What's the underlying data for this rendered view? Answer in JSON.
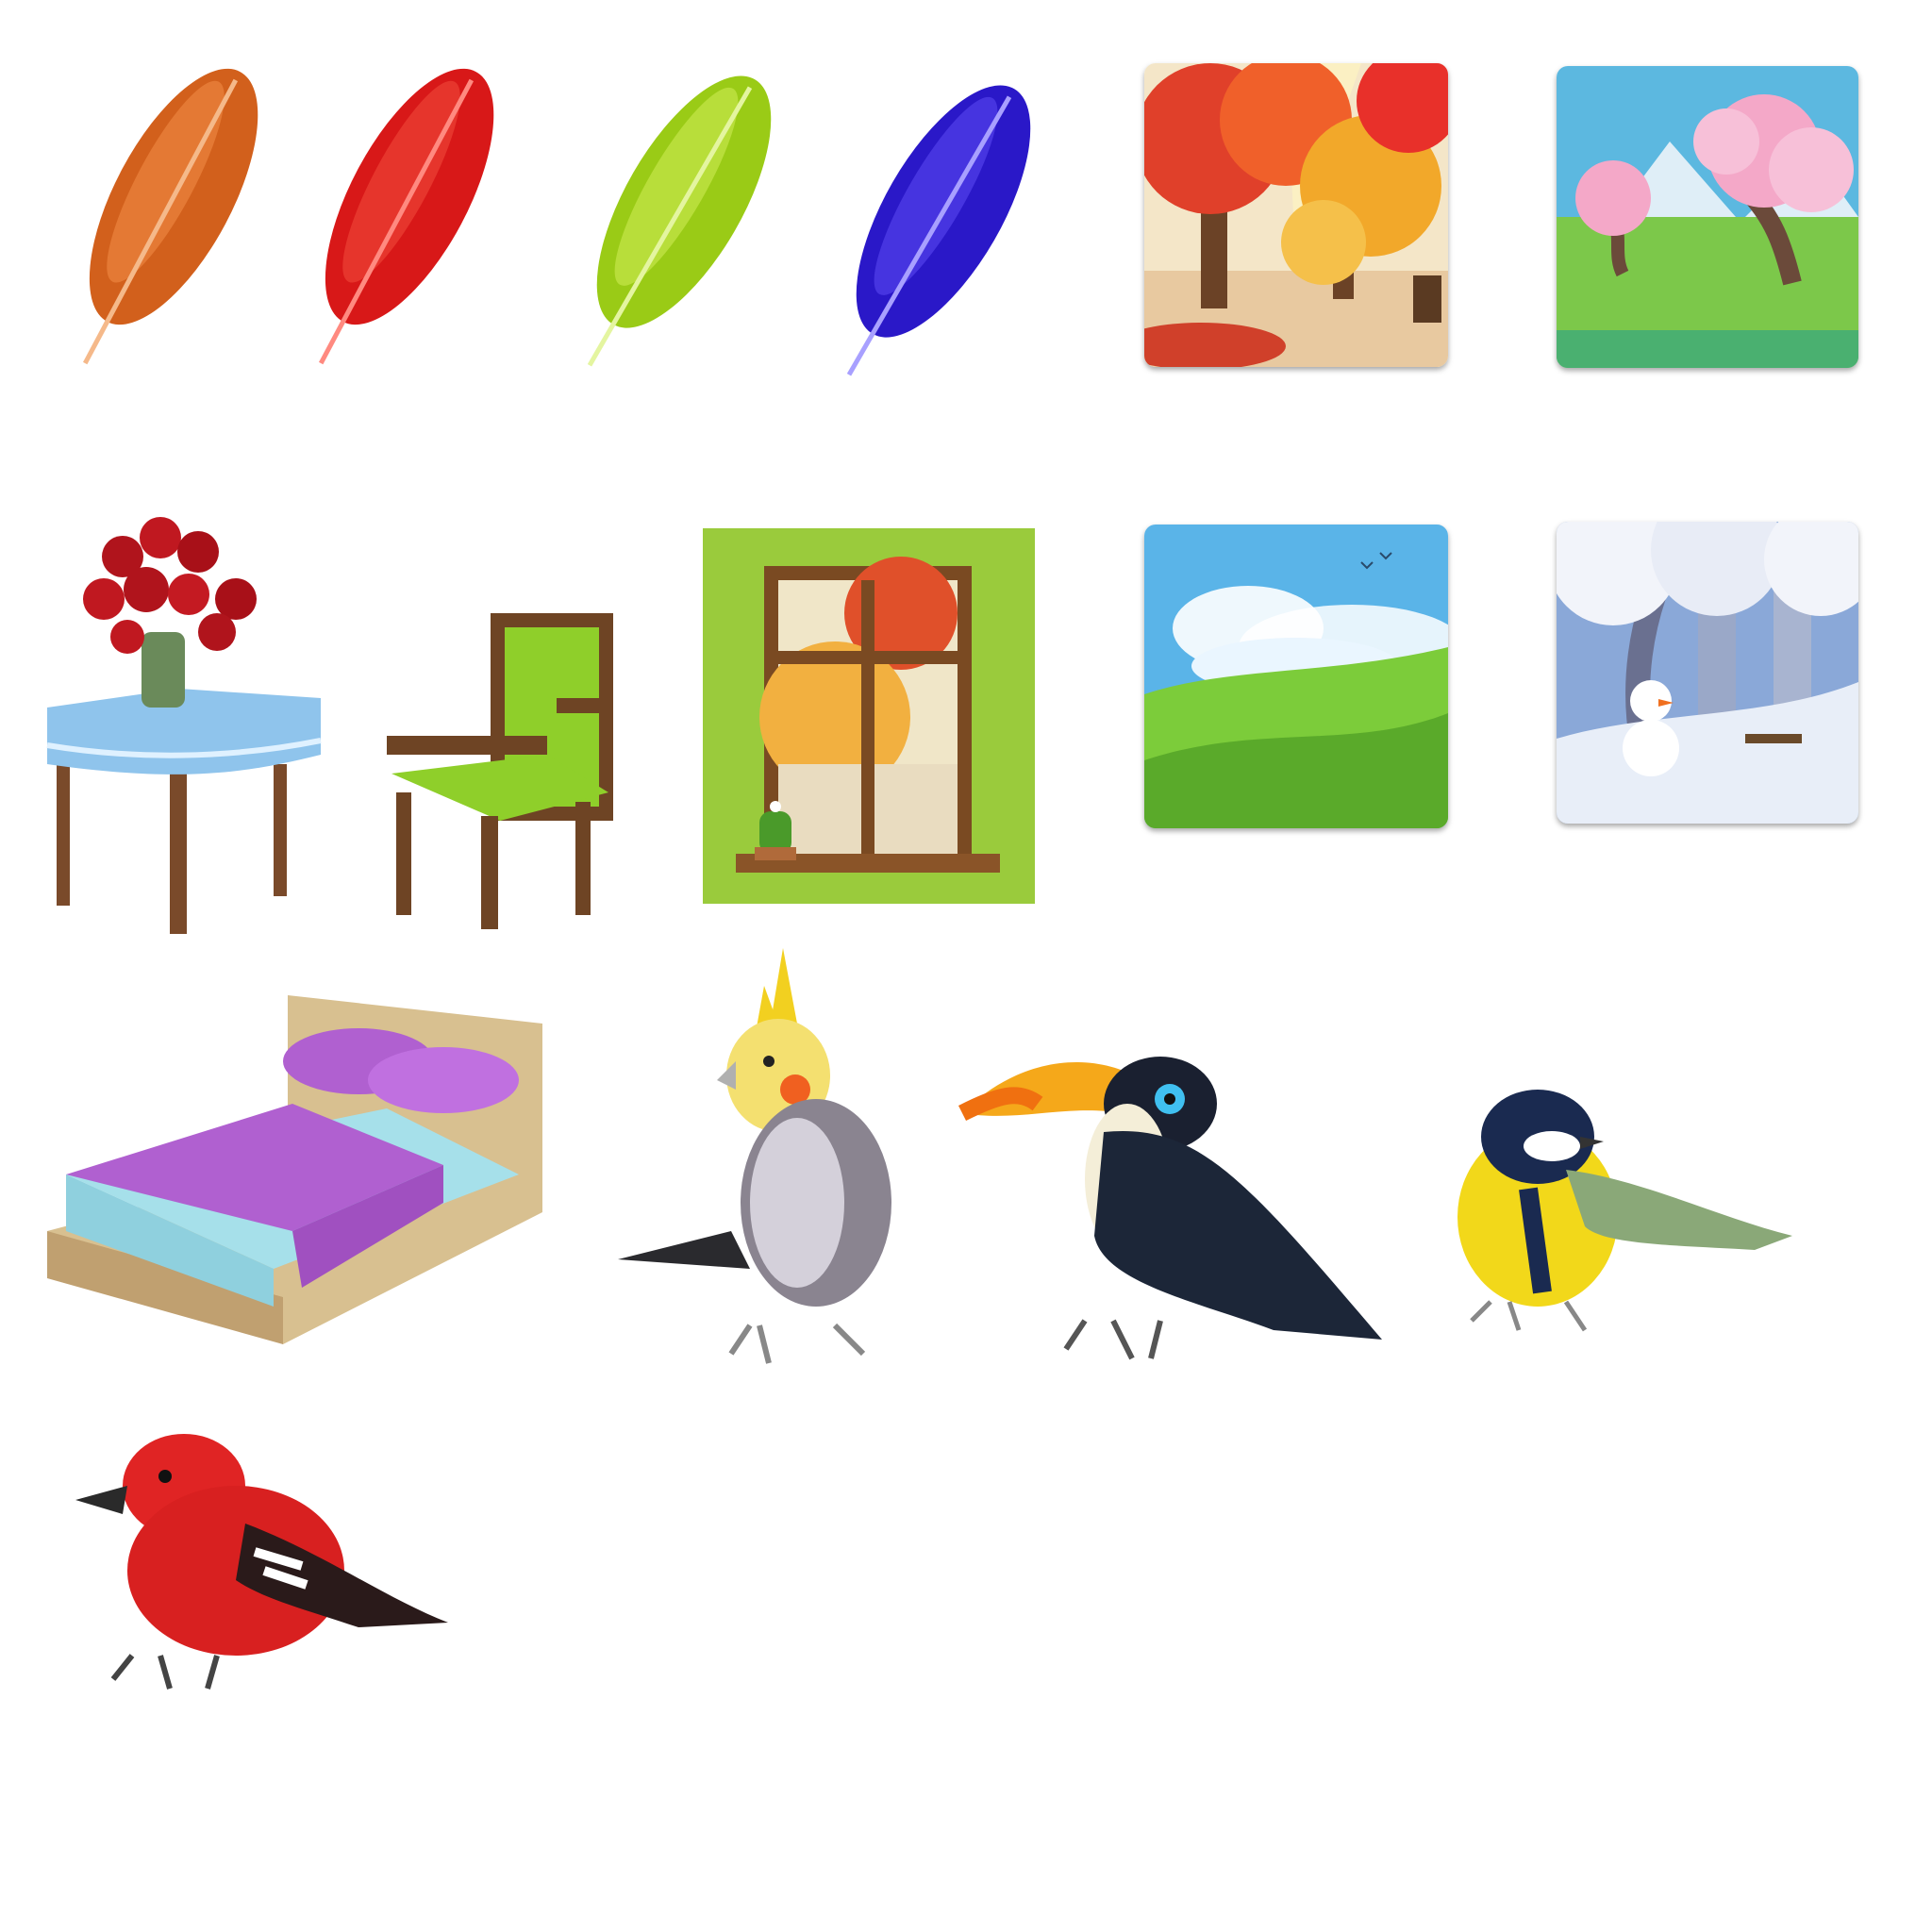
{
  "sprite_sheet": {
    "background": "#ffffff",
    "feathers": [
      {
        "name": "orange-feather",
        "color": "#d2601c",
        "light": "#f08a45",
        "shaft": "#f5b98a"
      },
      {
        "name": "red-feather",
        "color": "#d81818",
        "light": "#f04a3a",
        "shaft": "#ff8a80"
      },
      {
        "name": "green-feather",
        "color": "#9acb16",
        "light": "#c5e64a",
        "shaft": "#e4f5a0"
      },
      {
        "name": "blue-feather",
        "color": "#2a18c8",
        "light": "#5a48f0",
        "shaft": "#a8a0ff"
      }
    ],
    "season_tiles": [
      {
        "name": "autumn-tile",
        "season": "autumn"
      },
      {
        "name": "spring-tile",
        "season": "spring"
      },
      {
        "name": "summer-tile",
        "season": "summer"
      },
      {
        "name": "winter-tile",
        "season": "winter"
      }
    ],
    "furniture": [
      "table-with-roses",
      "green-armchair",
      "window-with-cactus",
      "double-bed"
    ],
    "birds": [
      "cockatiel",
      "toucan",
      "great-tit",
      "red-crossbill"
    ],
    "colors": {
      "wood": "#7a4a2a",
      "tablecloth": "#8fc4ec",
      "armchair_cushion": "#8fcf2a",
      "wall_green": "#9acb3c",
      "bed_purple": "#b060d0",
      "bed_sheet": "#a6e0ea"
    }
  }
}
